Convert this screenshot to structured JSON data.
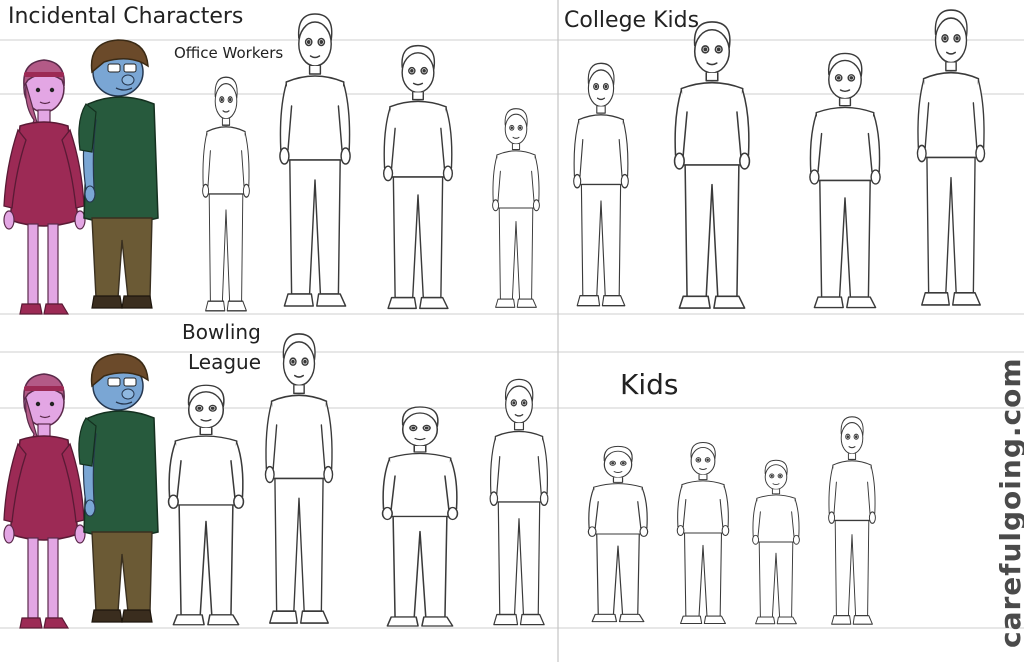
{
  "sections": {
    "incidental": {
      "title": "Incidental Characters"
    },
    "office": {
      "title": "Office Workers"
    },
    "college": {
      "title": "College Kids"
    },
    "bowling": {
      "title_line1": "Bowling",
      "title_line2": "League"
    },
    "kids": {
      "title": "Kids"
    }
  },
  "watermark": "carefulgoing.com",
  "colors": {
    "guide_line": "#cfcfcf",
    "divider": "#c4c4c4",
    "line_art": "#3a3a3a",
    "woman_skin": "#e3a6e4",
    "woman_hair": "#b35a87",
    "woman_dress": "#9c2a55",
    "woman_shoes": "#9c2a55",
    "man_skin": "#7aa6d4",
    "man_hair": "#6b4a2a",
    "man_shirt": "#275a3d",
    "man_pants": "#6b5a35",
    "man_shoes": "#3a2d1e"
  }
}
